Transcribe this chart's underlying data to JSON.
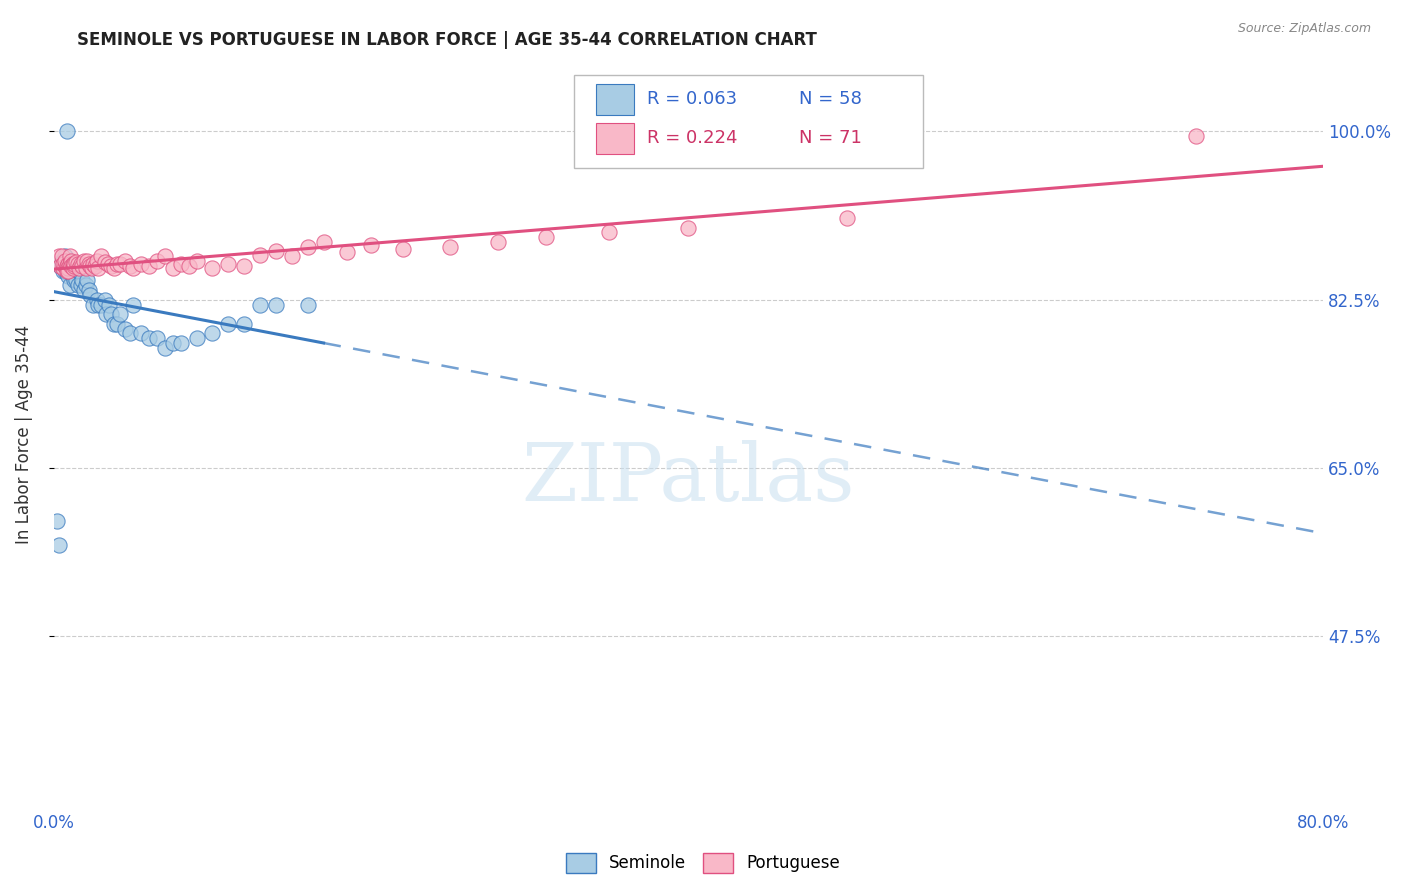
{
  "title": "SEMINOLE VS PORTUGUESE IN LABOR FORCE | AGE 35-44 CORRELATION CHART",
  "source": "Source: ZipAtlas.com",
  "ylabel": "In Labor Force | Age 35-44",
  "xlim": [
    0.0,
    0.8
  ],
  "ylim": [
    0.3,
    1.07
  ],
  "yticks": [
    0.475,
    0.65,
    0.825,
    1.0
  ],
  "ytick_labels": [
    "47.5%",
    "65.0%",
    "82.5%",
    "100.0%"
  ],
  "xticks": [
    0.0,
    0.1,
    0.2,
    0.3,
    0.4,
    0.5,
    0.6,
    0.7,
    0.8
  ],
  "xtick_labels": [
    "0.0%",
    "",
    "",
    "",
    "",
    "",
    "",
    "",
    "80.0%"
  ],
  "legend_r_seminole": "R = 0.063",
  "legend_n_seminole": "N = 58",
  "legend_r_portuguese": "R = 0.224",
  "legend_n_portuguese": "N = 71",
  "seminole_color": "#a8cce4",
  "portuguese_color": "#f9b8c8",
  "trend_seminole_color": "#3a7abf",
  "trend_portuguese_color": "#e05080",
  "seminole_x": [
    0.002,
    0.003,
    0.004,
    0.005,
    0.006,
    0.006,
    0.007,
    0.007,
    0.007,
    0.008,
    0.008,
    0.009,
    0.009,
    0.01,
    0.01,
    0.011,
    0.012,
    0.012,
    0.013,
    0.013,
    0.014,
    0.015,
    0.015,
    0.016,
    0.017,
    0.018,
    0.019,
    0.02,
    0.021,
    0.022,
    0.023,
    0.025,
    0.027,
    0.028,
    0.03,
    0.032,
    0.033,
    0.035,
    0.036,
    0.038,
    0.04,
    0.042,
    0.045,
    0.048,
    0.05,
    0.055,
    0.06,
    0.065,
    0.07,
    0.075,
    0.08,
    0.09,
    0.1,
    0.11,
    0.12,
    0.13,
    0.14,
    0.16
  ],
  "seminole_y": [
    0.595,
    0.57,
    0.86,
    0.865,
    0.865,
    0.855,
    0.87,
    0.86,
    0.855,
    1.0,
    0.855,
    0.855,
    0.85,
    0.855,
    0.84,
    0.86,
    0.85,
    0.855,
    0.85,
    0.845,
    0.845,
    0.855,
    0.84,
    0.855,
    0.84,
    0.845,
    0.835,
    0.84,
    0.845,
    0.835,
    0.83,
    0.82,
    0.825,
    0.82,
    0.82,
    0.825,
    0.81,
    0.82,
    0.81,
    0.8,
    0.8,
    0.81,
    0.795,
    0.79,
    0.82,
    0.79,
    0.785,
    0.785,
    0.775,
    0.78,
    0.78,
    0.785,
    0.79,
    0.8,
    0.8,
    0.82,
    0.82,
    0.82
  ],
  "portuguese_x": [
    0.003,
    0.004,
    0.005,
    0.006,
    0.006,
    0.007,
    0.007,
    0.008,
    0.008,
    0.009,
    0.009,
    0.009,
    0.01,
    0.01,
    0.011,
    0.011,
    0.012,
    0.012,
    0.013,
    0.013,
    0.014,
    0.015,
    0.016,
    0.017,
    0.018,
    0.019,
    0.02,
    0.021,
    0.022,
    0.023,
    0.024,
    0.025,
    0.026,
    0.027,
    0.028,
    0.03,
    0.032,
    0.034,
    0.036,
    0.038,
    0.04,
    0.042,
    0.045,
    0.048,
    0.05,
    0.055,
    0.06,
    0.065,
    0.07,
    0.075,
    0.08,
    0.085,
    0.09,
    0.1,
    0.11,
    0.12,
    0.13,
    0.14,
    0.15,
    0.16,
    0.17,
    0.185,
    0.2,
    0.22,
    0.25,
    0.28,
    0.31,
    0.35,
    0.4,
    0.5,
    0.72
  ],
  "portuguese_y": [
    0.87,
    0.86,
    0.87,
    0.858,
    0.862,
    0.86,
    0.865,
    0.86,
    0.855,
    0.862,
    0.858,
    0.855,
    0.87,
    0.862,
    0.865,
    0.86,
    0.862,
    0.858,
    0.86,
    0.862,
    0.864,
    0.862,
    0.858,
    0.862,
    0.86,
    0.865,
    0.858,
    0.865,
    0.862,
    0.86,
    0.858,
    0.862,
    0.86,
    0.865,
    0.858,
    0.87,
    0.864,
    0.862,
    0.86,
    0.858,
    0.862,
    0.862,
    0.865,
    0.86,
    0.858,
    0.862,
    0.86,
    0.865,
    0.87,
    0.858,
    0.862,
    0.86,
    0.865,
    0.858,
    0.862,
    0.86,
    0.872,
    0.876,
    0.87,
    0.88,
    0.885,
    0.875,
    0.882,
    0.878,
    0.88,
    0.885,
    0.89,
    0.895,
    0.9,
    0.91,
    0.995
  ]
}
